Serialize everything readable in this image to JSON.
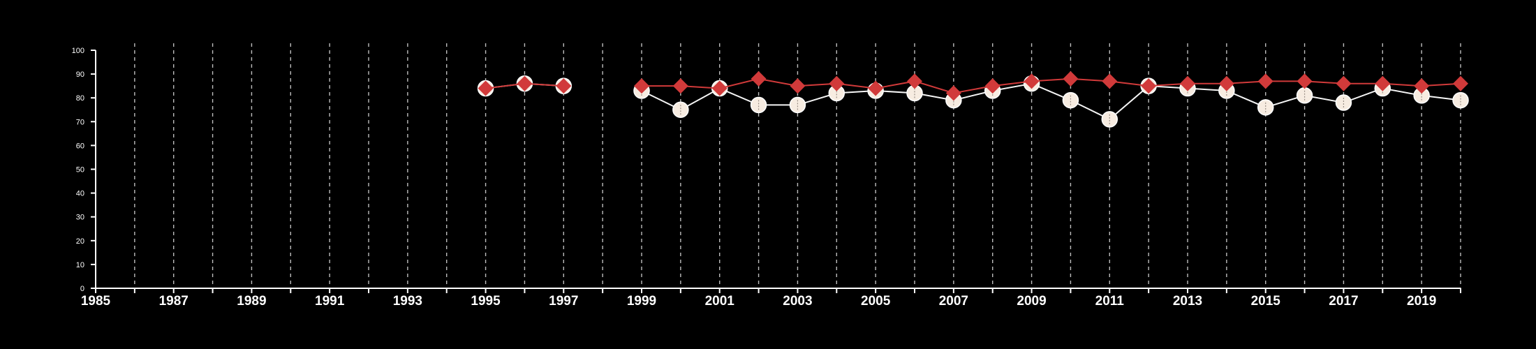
{
  "chart_data": {
    "type": "line",
    "title": "",
    "xlabel": "",
    "ylabel": "",
    "xlim": [
      1985,
      2020
    ],
    "ylim": [
      0,
      100
    ],
    "x_ticks_labeled": [
      1985,
      1987,
      1989,
      1991,
      1993,
      1995,
      1997,
      1999,
      2001,
      2003,
      2005,
      2007,
      2009,
      2011,
      2013,
      2015,
      2017,
      2019
    ],
    "y_ticks": [
      0,
      10,
      20,
      30,
      40,
      50,
      60,
      70,
      80,
      90,
      100
    ],
    "grid": "vertical dashed lines at each year",
    "legend": "none",
    "background": "#000000",
    "axis_color": "#ffffff",
    "series": [
      {
        "marker": "circle",
        "line_color": "#f5f5f5",
        "marker_color": "#f7ece1",
        "points": [
          {
            "x": 1995,
            "y": 84
          },
          {
            "x": 1996,
            "y": 86
          },
          {
            "x": 1997,
            "y": 85
          },
          {
            "x": 1999,
            "y": 83
          },
          {
            "x": 2000,
            "y": 75
          },
          {
            "x": 2001,
            "y": 84
          },
          {
            "x": 2002,
            "y": 77
          },
          {
            "x": 2003,
            "y": 77
          },
          {
            "x": 2004,
            "y": 82
          },
          {
            "x": 2005,
            "y": 83
          },
          {
            "x": 2006,
            "y": 82
          },
          {
            "x": 2007,
            "y": 79
          },
          {
            "x": 2008,
            "y": 83
          },
          {
            "x": 2009,
            "y": 86
          },
          {
            "x": 2010,
            "y": 79
          },
          {
            "x": 2011,
            "y": 71
          },
          {
            "x": 2012,
            "y": 85
          },
          {
            "x": 2013,
            "y": 84
          },
          {
            "x": 2014,
            "y": 83
          },
          {
            "x": 2015,
            "y": 76
          },
          {
            "x": 2016,
            "y": 81
          },
          {
            "x": 2017,
            "y": 78
          },
          {
            "x": 2018,
            "y": 84
          },
          {
            "x": 2019,
            "y": 81
          },
          {
            "x": 2020,
            "y": 79
          }
        ]
      },
      {
        "marker": "diamond",
        "line_color": "#d13a3a",
        "marker_color": "#d13a3a",
        "points": [
          {
            "x": 1995,
            "y": 84
          },
          {
            "x": 1996,
            "y": 86
          },
          {
            "x": 1997,
            "y": 85
          },
          {
            "x": 1999,
            "y": 85
          },
          {
            "x": 2000,
            "y": 85
          },
          {
            "x": 2001,
            "y": 84
          },
          {
            "x": 2002,
            "y": 88
          },
          {
            "x": 2003,
            "y": 85
          },
          {
            "x": 2004,
            "y": 86
          },
          {
            "x": 2005,
            "y": 84
          },
          {
            "x": 2006,
            "y": 87
          },
          {
            "x": 2007,
            "y": 82
          },
          {
            "x": 2008,
            "y": 85
          },
          {
            "x": 2009,
            "y": 87
          },
          {
            "x": 2010,
            "y": 88
          },
          {
            "x": 2011,
            "y": 87
          },
          {
            "x": 2012,
            "y": 85
          },
          {
            "x": 2013,
            "y": 86
          },
          {
            "x": 2014,
            "y": 86
          },
          {
            "x": 2015,
            "y": 87
          },
          {
            "x": 2016,
            "y": 87
          },
          {
            "x": 2017,
            "y": 86
          },
          {
            "x": 2018,
            "y": 86
          },
          {
            "x": 2019,
            "y": 85
          },
          {
            "x": 2020,
            "y": 86
          }
        ]
      }
    ]
  }
}
